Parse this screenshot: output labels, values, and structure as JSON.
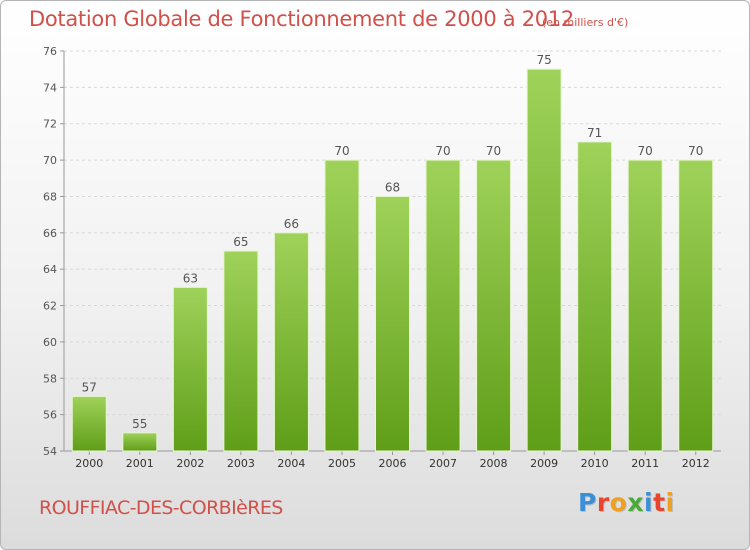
{
  "header": {
    "title": "Dotation Globale de Fonctionnement de 2000 à 2012",
    "unit": "(en milliers d'€)"
  },
  "footer": {
    "commune": "ROUFFIAC-DES-CORBIèRES",
    "brand": "Proxiti",
    "brand_letter_colors": [
      "#3b8fd6",
      "#e8452c",
      "#f0a020",
      "#4caa3c",
      "#3b8fd6",
      "#e8452c",
      "#f0a020"
    ]
  },
  "colors": {
    "bar_top": "#9fd25a",
    "bar_bottom": "#5f9e18",
    "text": "#d0504a",
    "axis_text": "#555555"
  },
  "chart_data": {
    "type": "bar",
    "title": "Dotation Globale de Fonctionnement de 2000 à 2012",
    "subtitle": "(en milliers d'€)",
    "xlabel": "",
    "ylabel": "",
    "categories": [
      "2000",
      "2001",
      "2002",
      "2003",
      "2004",
      "2005",
      "2006",
      "2007",
      "2008",
      "2009",
      "2010",
      "2011",
      "2012"
    ],
    "values": [
      57,
      55,
      63,
      65,
      66,
      70,
      68,
      70,
      70,
      75,
      71,
      70,
      70
    ],
    "ylim": [
      54,
      76
    ],
    "yticks": [
      54,
      56,
      58,
      60,
      62,
      64,
      66,
      68,
      70,
      72,
      74,
      76
    ],
    "grid": true,
    "legend": "none",
    "data_labels": true
  }
}
